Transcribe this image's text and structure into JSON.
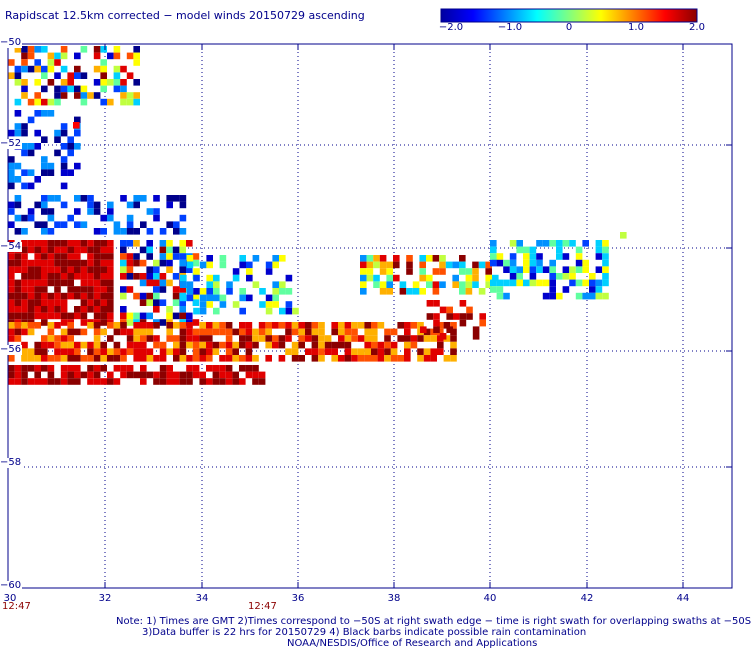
{
  "title": "Rapidscat 12.5km corrected − model winds 20150729 ascending",
  "colorbar": {
    "labels": [
      "−2.0",
      "−1.0",
      "0",
      "1.0",
      "2.0"
    ],
    "min": -2.0,
    "max": 2.0,
    "colors": [
      "#0000a0",
      "#0000ff",
      "#0080ff",
      "#00ffff",
      "#80ff80",
      "#ffff00",
      "#ff8000",
      "#ff0000",
      "#8b0000"
    ]
  },
  "axes": {
    "x_ticks": [
      "30",
      "32",
      "34",
      "36",
      "38",
      "40",
      "42",
      "44"
    ],
    "y_ticks": [
      "−50",
      "−52",
      "−54",
      "−56",
      "−58",
      "−60"
    ],
    "xlim": [
      30,
      44.6
    ],
    "ylim": [
      -60,
      -49.9
    ]
  },
  "times": [
    "12:47",
    "12:47"
  ],
  "notes": [
    "Note: 1) Times are GMT 2)Times correspond to −50S at right swath edge − time is right swath for overlapping swaths at −50S",
    "3)Data buffer is 22 hrs for 20150729 4) Black barbs indicate possible rain contamination",
    "NOAA/NESDIS/Office of Research and Applications"
  ]
}
